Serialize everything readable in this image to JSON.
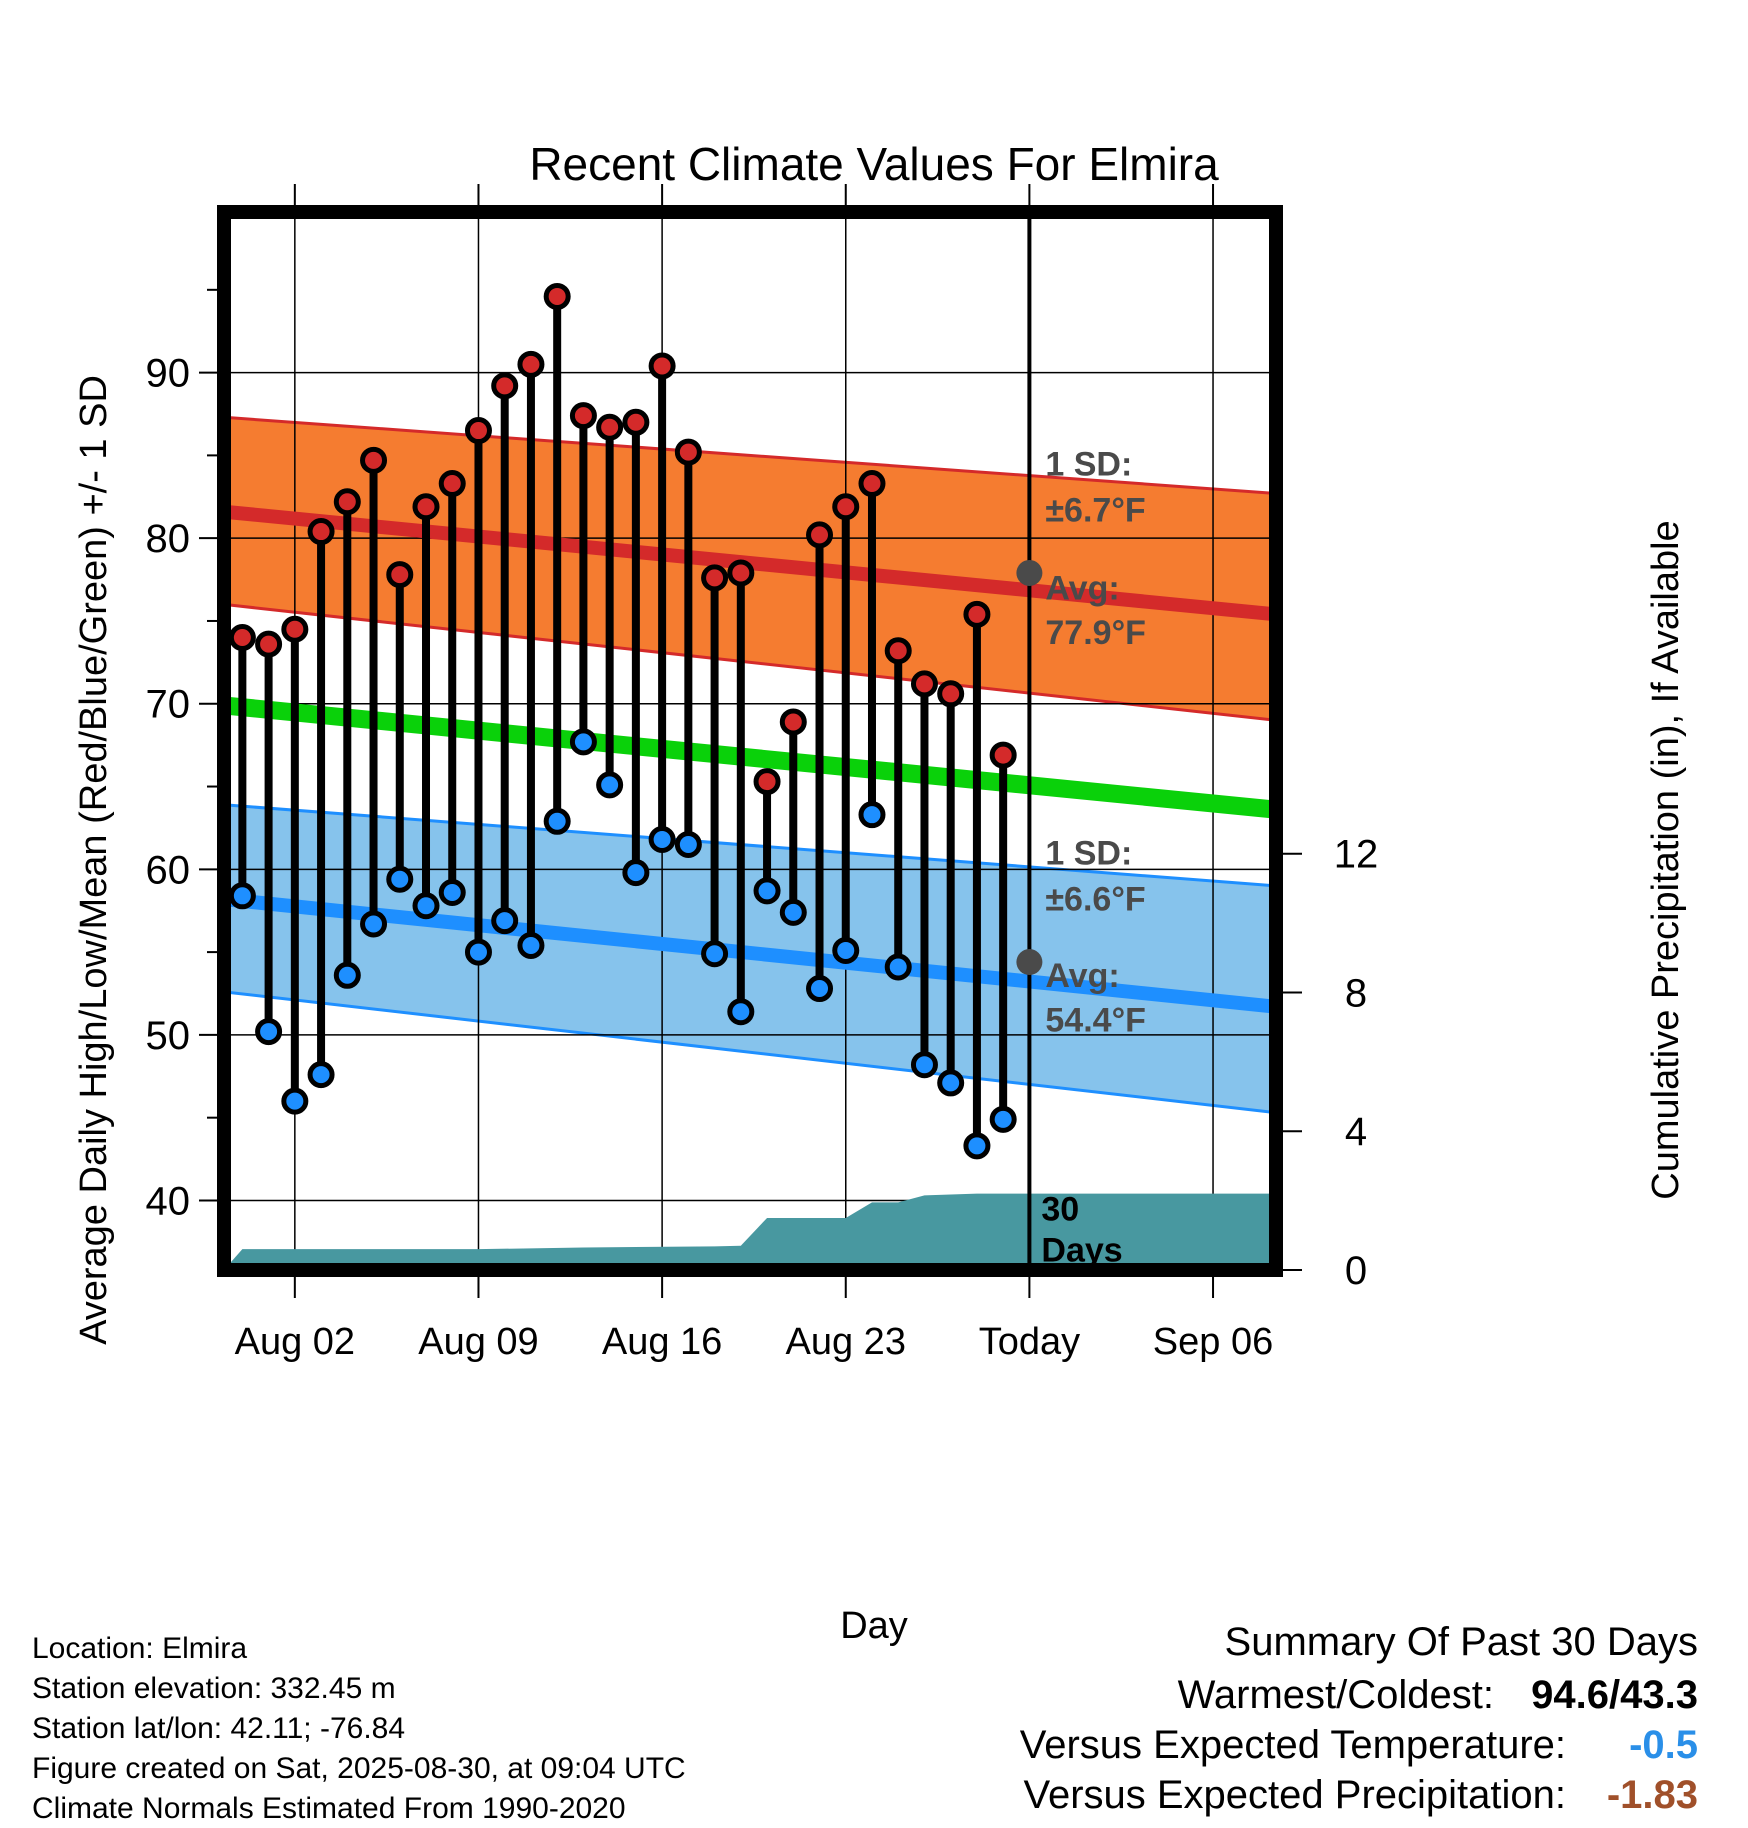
{
  "chart_data": {
    "type": "line",
    "title": "Recent Climate Values For Elmira",
    "xlabel": "Day",
    "ylabel_left": "Average Daily High/Low/Mean (Red/Blue/Green) +/- 1 SD",
    "ylabel_right": "Cumulative Precipitation (in), If Available",
    "x_ticks": [
      {
        "day": 2,
        "label": "Aug 02"
      },
      {
        "day": 9,
        "label": "Aug 09"
      },
      {
        "day": 16,
        "label": "Aug 16"
      },
      {
        "day": 23,
        "label": "Aug 23"
      },
      {
        "day": 30,
        "label": "Today"
      },
      {
        "day": 37,
        "label": "Sep 06"
      }
    ],
    "xlim": [
      -0.7,
      39.4
    ],
    "ylim": [
      35.8,
      99.7
    ],
    "y_ticks": [
      40,
      50,
      60,
      70,
      80,
      90
    ],
    "precip_ylim": [
      0,
      30.5
    ],
    "precip_ticks": [
      0,
      4,
      8,
      12
    ],
    "today_day": 30,
    "high_temps": [
      74.0,
      73.6,
      74.5,
      80.4,
      82.2,
      84.7,
      77.8,
      81.9,
      83.3,
      86.5,
      89.2,
      90.5,
      94.6,
      87.4,
      86.7,
      87.0,
      90.4,
      85.2,
      77.6,
      77.9,
      65.3,
      68.9,
      80.2,
      81.9,
      83.3,
      73.2,
      71.2,
      70.6,
      75.4,
      66.9
    ],
    "low_temps": [
      58.4,
      50.2,
      46.0,
      47.6,
      53.6,
      56.7,
      59.4,
      57.8,
      58.6,
      55.0,
      56.9,
      55.4,
      62.9,
      67.7,
      65.1,
      59.8,
      61.8,
      61.5,
      54.9,
      51.4,
      58.7,
      57.4,
      52.8,
      55.1,
      63.3,
      54.1,
      48.2,
      47.1,
      43.3,
      44.9
    ],
    "normal_high": {
      "start": 81.6,
      "end": 75.4,
      "sd_upper_start": 87.3,
      "sd_upper_end": 82.7,
      "sd_lower_start": 76.0,
      "sd_lower_end": 69.0
    },
    "normal_low": {
      "start": 58.2,
      "end": 51.7,
      "sd_upper_start": 63.9,
      "sd_upper_end": 59.0,
      "sd_lower_start": 52.6,
      "sd_lower_end": 45.3
    },
    "normal_mean": {
      "start": 69.9,
      "end": 63.6
    },
    "precip_cumulative": [
      {
        "day": -0.7,
        "value": 0.0
      },
      {
        "day": 0.0,
        "value": 0.6
      },
      {
        "day": 9,
        "value": 0.6
      },
      {
        "day": 13,
        "value": 0.65
      },
      {
        "day": 18,
        "value": 0.68
      },
      {
        "day": 19,
        "value": 0.7
      },
      {
        "day": 20,
        "value": 1.5
      },
      {
        "day": 23,
        "value": 1.5
      },
      {
        "day": 24,
        "value": 1.95
      },
      {
        "day": 25,
        "value": 1.95
      },
      {
        "day": 26,
        "value": 2.15
      },
      {
        "day": 28,
        "value": 2.2
      },
      {
        "day": 39.4,
        "value": 2.2
      }
    ],
    "annotations": {
      "high_sd_label": "1 SD:",
      "high_sd_value": "±6.7°F",
      "high_avg_label": "Avg:",
      "high_avg_value": "77.9°F",
      "today_high_avg": 77.9,
      "low_sd_label": "1 SD:",
      "low_sd_value": "±6.6°F",
      "low_avg_label": "Avg:",
      "low_avg_value": "54.4°F",
      "today_low_avg": 54.4,
      "precip_label_1": "30",
      "precip_label_2": "Days"
    },
    "colors": {
      "high": "#d42a2a",
      "high_band": "#f57c30",
      "low": "#1e8fff",
      "low_band": "#86c3ec",
      "mean": "#0ad10a",
      "precip": "#4898a0",
      "annotation": "#4a4a4a",
      "cold_value": "#2a8fe8",
      "dry_value": "#a0502a"
    }
  },
  "info": {
    "location": "Location: Elmira",
    "elevation": "Station elevation: 332.45 m",
    "latlon": "Station lat/lon: 42.11; -76.84",
    "created": "Figure created on Sat, 2025-08-30, at 09:04 UTC",
    "normals": "Climate Normals Estimated From 1990-2020"
  },
  "summary": {
    "title": "Summary Of Past 30 Days",
    "warmest_label": "Warmest/Coldest:",
    "warmest_value": "94.6/43.3",
    "temp_label": "Versus Expected Temperature:",
    "temp_value": "-0.5",
    "precip_label": "Versus Expected Precipitation:",
    "precip_value": "-1.83"
  }
}
